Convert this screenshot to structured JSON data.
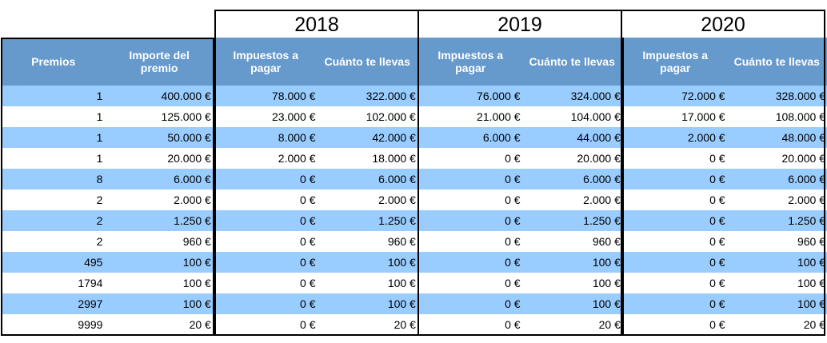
{
  "years": [
    "2018",
    "2019",
    "2020"
  ],
  "headers": {
    "premios": "Premios",
    "importe": "Importe del premio",
    "impuestos": "Impuestos a pagar",
    "llevas": "Cuánto te llevas"
  },
  "colors": {
    "header_bg": "#6699cc",
    "row_odd": "#99ccff",
    "row_even": "#ffffff"
  },
  "rows": [
    {
      "premios": "1",
      "importe": "400.000 €",
      "y2018": {
        "impuestos": "78.000 €",
        "llevas": "322.000 €"
      },
      "y2019": {
        "impuestos": "76.000 €",
        "llevas": "324.000 €"
      },
      "y2020": {
        "impuestos": "72.000 €",
        "llevas": "328.000 €"
      }
    },
    {
      "premios": "1",
      "importe": "125.000 €",
      "y2018": {
        "impuestos": "23.000 €",
        "llevas": "102.000 €"
      },
      "y2019": {
        "impuestos": "21.000 €",
        "llevas": "104.000 €"
      },
      "y2020": {
        "impuestos": "17.000 €",
        "llevas": "108.000 €"
      }
    },
    {
      "premios": "1",
      "importe": "50.000 €",
      "y2018": {
        "impuestos": "8.000 €",
        "llevas": "42.000 €"
      },
      "y2019": {
        "impuestos": "6.000 €",
        "llevas": "44.000 €"
      },
      "y2020": {
        "impuestos": "2.000 €",
        "llevas": "48.000 €"
      }
    },
    {
      "premios": "1",
      "importe": "20.000 €",
      "y2018": {
        "impuestos": "2.000 €",
        "llevas": "18.000 €"
      },
      "y2019": {
        "impuestos": "0 €",
        "llevas": "20.000 €"
      },
      "y2020": {
        "impuestos": "0 €",
        "llevas": "20.000 €"
      }
    },
    {
      "premios": "8",
      "importe": "6.000 €",
      "y2018": {
        "impuestos": "0 €",
        "llevas": "6.000 €"
      },
      "y2019": {
        "impuestos": "0 €",
        "llevas": "6.000 €"
      },
      "y2020": {
        "impuestos": "0 €",
        "llevas": "6.000 €"
      }
    },
    {
      "premios": "2",
      "importe": "2.000 €",
      "y2018": {
        "impuestos": "0 €",
        "llevas": "2.000 €"
      },
      "y2019": {
        "impuestos": "0 €",
        "llevas": "2.000 €"
      },
      "y2020": {
        "impuestos": "0 €",
        "llevas": "2.000 €"
      }
    },
    {
      "premios": "2",
      "importe": "1.250 €",
      "y2018": {
        "impuestos": "0 €",
        "llevas": "1.250 €"
      },
      "y2019": {
        "impuestos": "0 €",
        "llevas": "1.250 €"
      },
      "y2020": {
        "impuestos": "0 €",
        "llevas": "1.250 €"
      }
    },
    {
      "premios": "2",
      "importe": "960 €",
      "y2018": {
        "impuestos": "0 €",
        "llevas": "960 €"
      },
      "y2019": {
        "impuestos": "0 €",
        "llevas": "960 €"
      },
      "y2020": {
        "impuestos": "0 €",
        "llevas": "960 €"
      }
    },
    {
      "premios": "495",
      "importe": "100 €",
      "y2018": {
        "impuestos": "0 €",
        "llevas": "100 €"
      },
      "y2019": {
        "impuestos": "0 €",
        "llevas": "100 €"
      },
      "y2020": {
        "impuestos": "0 €",
        "llevas": "100 €"
      }
    },
    {
      "premios": "1794",
      "importe": "100 €",
      "y2018": {
        "impuestos": "0 €",
        "llevas": "100 €"
      },
      "y2019": {
        "impuestos": "0 €",
        "llevas": "100 €"
      },
      "y2020": {
        "impuestos": "0 €",
        "llevas": "100 €"
      }
    },
    {
      "premios": "2997",
      "importe": "100 €",
      "y2018": {
        "impuestos": "0 €",
        "llevas": "100 €"
      },
      "y2019": {
        "impuestos": "0 €",
        "llevas": "100 €"
      },
      "y2020": {
        "impuestos": "0 €",
        "llevas": "100 €"
      }
    },
    {
      "premios": "9999",
      "importe": "20 €",
      "y2018": {
        "impuestos": "0 €",
        "llevas": "20 €"
      },
      "y2019": {
        "impuestos": "0 €",
        "llevas": "20 €"
      },
      "y2020": {
        "impuestos": "0 €",
        "llevas": "20 €"
      }
    }
  ]
}
